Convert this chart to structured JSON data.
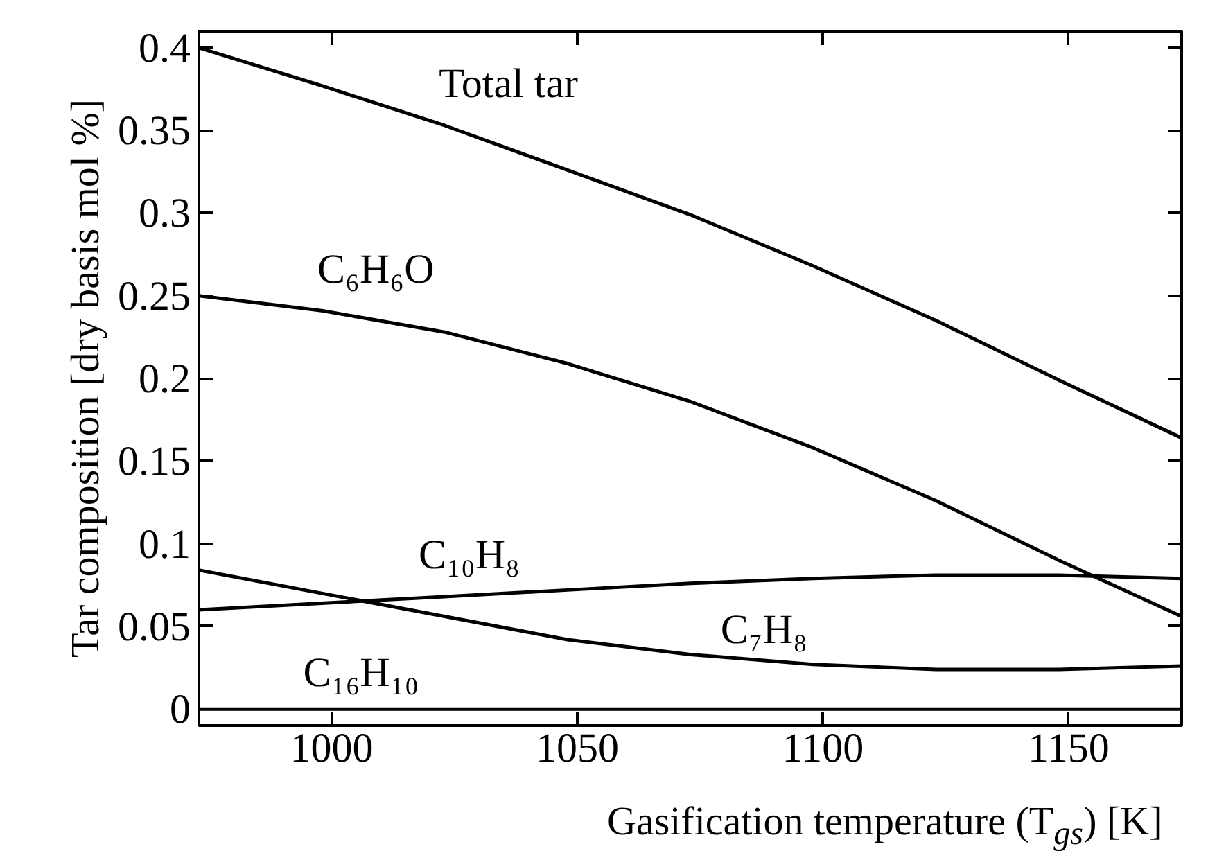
{
  "chart_data": {
    "type": "line",
    "xlabel": "Gasification temperature (T$_{gs}$) [K]",
    "ylabel": "Tar composition [dry basis mol %]",
    "x": [
      973,
      998,
      1023,
      1048,
      1073,
      1098,
      1123,
      1148,
      1173
    ],
    "series": [
      {
        "name": "Total tar",
        "color": "#000000",
        "values": [
          0.4,
          0.377,
          0.353,
          0.326,
          0.299,
          0.268,
          0.235,
          0.199,
          0.164
        ]
      },
      {
        "name": "C₆H₆O",
        "color": "#000000",
        "values": [
          0.25,
          0.241,
          0.228,
          0.209,
          0.186,
          0.158,
          0.126,
          0.09,
          0.056
        ]
      },
      {
        "name": "C₁₀H₈",
        "color": "#000000",
        "values": [
          0.06,
          0.064,
          0.068,
          0.072,
          0.076,
          0.079,
          0.081,
          0.081,
          0.079
        ]
      },
      {
        "name": "C₇H₈",
        "color": "#000000",
        "values": [
          0.084,
          0.07,
          0.056,
          0.042,
          0.033,
          0.027,
          0.024,
          0.024,
          0.026
        ]
      },
      {
        "name": "C₁₆H₁₀",
        "color": "#000000",
        "values": [
          0,
          0,
          0,
          0,
          0,
          0,
          0,
          0,
          0
        ]
      }
    ],
    "xlim": [
      973,
      1173
    ],
    "ylim": [
      -0.01,
      0.41
    ],
    "xticks": [
      1000,
      1050,
      1100,
      1150
    ],
    "yticks": [
      0,
      0.05,
      0.1,
      0.15,
      0.2,
      0.25,
      0.3,
      0.35,
      0.4
    ],
    "grid": false,
    "marker": "none",
    "line_style": "solid"
  }
}
